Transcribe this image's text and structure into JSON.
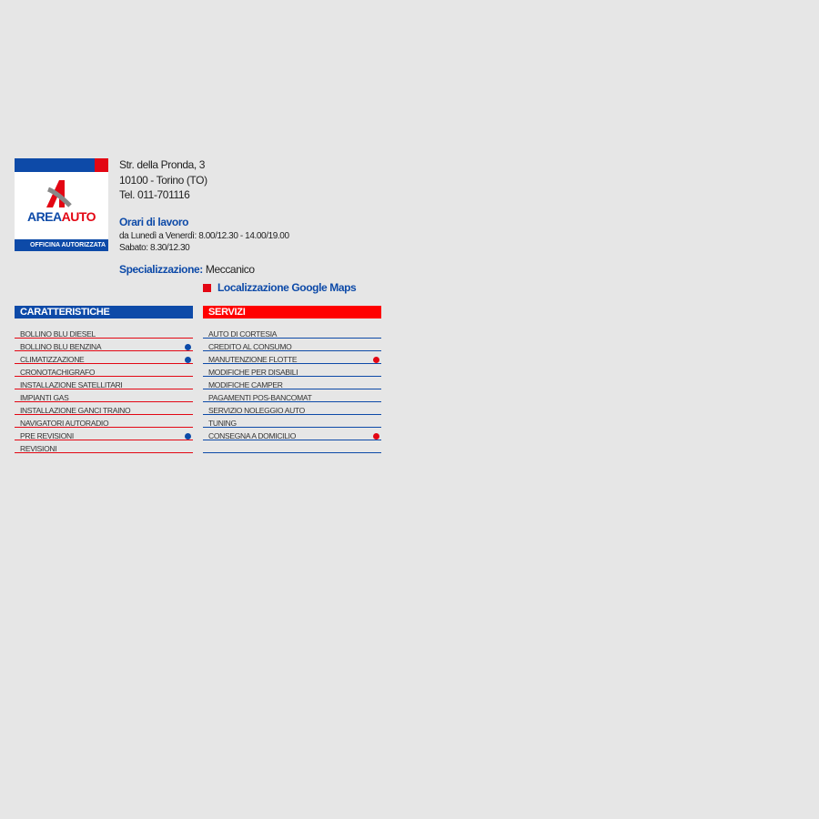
{
  "logo": {
    "brand_left": "AREA",
    "brand_right": "AUTO",
    "tagline": "OFFICINA AUTORIZZATA"
  },
  "address": [
    "Str. della Pronda, 3",
    "10100 - Torino (TO)",
    "Tel. 011-701116"
  ],
  "hours": {
    "title": "Orari di lavoro",
    "lines": [
      "da Lunedì a Venerdì: 8.00/12.30 - 14.00/19.00",
      "Sabato: 8.30/12.30"
    ]
  },
  "specialization": {
    "label": "Specializzazione:",
    "value": "Meccanico"
  },
  "map_link": "Localizzazione Google Maps",
  "features": {
    "title": "CARATTERISTICHE",
    "items": [
      {
        "label": "BOLLINO BLU DIESEL",
        "marked": false
      },
      {
        "label": "BOLLINO BLU BENZINA",
        "marked": true
      },
      {
        "label": "CLIMATIZZAZIONE",
        "marked": true
      },
      {
        "label": "CRONOTACHIGRAFO",
        "marked": false
      },
      {
        "label": "INSTALLAZIONE SATELLITARI",
        "marked": false
      },
      {
        "label": "IMPIANTI GAS",
        "marked": false
      },
      {
        "label": "INSTALLAZIONE GANCI TRAINO",
        "marked": false
      },
      {
        "label": "NAVIGATORI AUTORADIO",
        "marked": false
      },
      {
        "label": "PRE REVISIONI",
        "marked": true
      },
      {
        "label": "REVISIONI",
        "marked": false
      }
    ]
  },
  "services": {
    "title": "SERVIZI",
    "items": [
      {
        "label": "AUTO DI CORTESIA",
        "marked": false
      },
      {
        "label": "CREDITO AL CONSUMO",
        "marked": false
      },
      {
        "label": "MANUTENZIONE FLOTTE",
        "marked": true
      },
      {
        "label": "MODIFICHE PER DISABILI",
        "marked": false
      },
      {
        "label": "MODIFICHE CAMPER",
        "marked": false
      },
      {
        "label": "PAGAMENTI POS-BANCOMAT",
        "marked": false
      },
      {
        "label": "SERVIZIO NOLEGGIO AUTO",
        "marked": false
      },
      {
        "label": "TUNING",
        "marked": false
      },
      {
        "label": "CONSEGNA A DOMICILIO",
        "marked": true
      }
    ]
  }
}
